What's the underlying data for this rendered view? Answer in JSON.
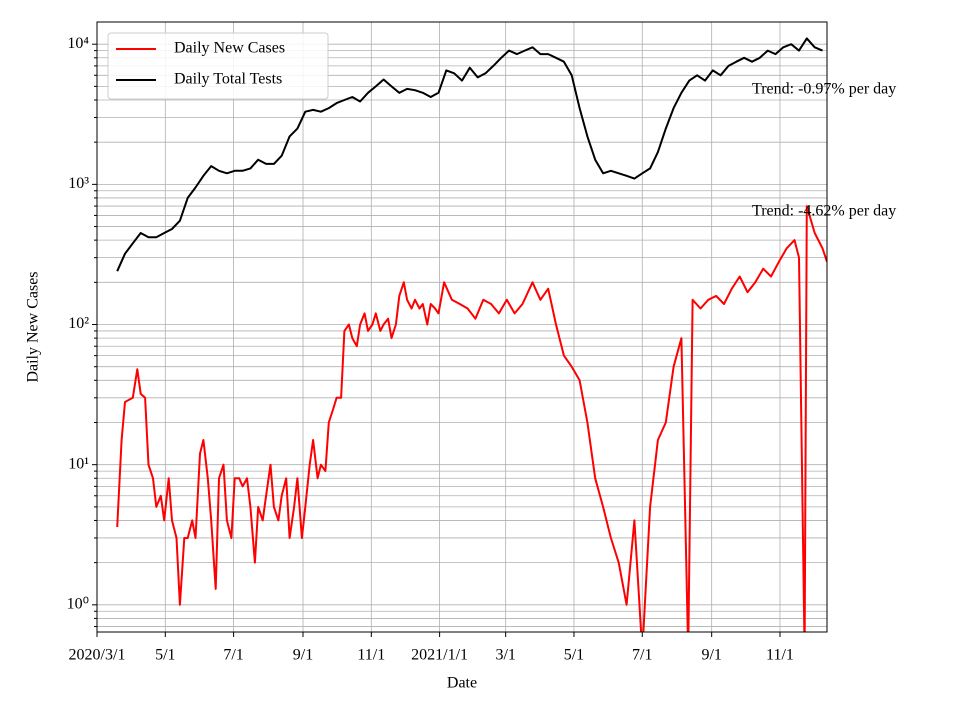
{
  "chart_data": {
    "type": "line",
    "xlabel": "Date",
    "ylabel": "Daily New Cases",
    "log_y": true,
    "grid": true,
    "legend": "upper left",
    "annotations": [
      "Trend: -0.97% per day",
      "Trend: -4.62% per day"
    ],
    "xlim": [
      "2020/3/1",
      "2021/12/13"
    ],
    "xticks": [
      "2020/3/1",
      {
        "value": "2020/5/1",
        "label": "5/1"
      },
      {
        "value": "2020/7/1",
        "label": "7/1"
      },
      {
        "value": "2020/9/1",
        "label": "9/1"
      },
      {
        "value": "2020/11/1",
        "label": "11/1"
      },
      {
        "value": "2021/1/1",
        "label": "2021/1/1"
      },
      {
        "value": "2021/3/1",
        "label": "3/1"
      },
      {
        "value": "2021/5/1",
        "label": "5/1"
      },
      {
        "value": "2021/7/1",
        "label": "7/1"
      },
      {
        "value": "2021/9/1",
        "label": "9/1"
      },
      {
        "value": "2021/11/1",
        "label": "11/1"
      }
    ],
    "ylim": [
      0.64,
      14400
    ],
    "yticks": [
      {
        "value": 1,
        "label": "10⁰"
      },
      {
        "value": 10,
        "label": "10¹"
      },
      {
        "value": 100,
        "label": "10²"
      },
      {
        "value": 1000,
        "label": "10³"
      },
      {
        "value": 10000,
        "label": "10⁴"
      }
    ],
    "series": [
      {
        "name": "Daily New Cases",
        "color": "#ff0000",
        "x": [
          "2020/3/19",
          "2020/3/23",
          "2020/3/26",
          "2020/4/2",
          "2020/4/6",
          "2020/4/9",
          "2020/4/13",
          "2020/4/16",
          "2020/4/20",
          "2020/4/23",
          "2020/4/27",
          "2020/4/30",
          "2020/5/4",
          "2020/5/7",
          "2020/5/11",
          "2020/5/14",
          "2020/5/18",
          "2020/5/21",
          "2020/5/25",
          "2020/5/28",
          "2020/6/1",
          "2020/6/4",
          "2020/6/8",
          "2020/6/11",
          "2020/6/15",
          "2020/6/18",
          "2020/6/22",
          "2020/6/25",
          "2020/6/29",
          "2020/7/2",
          "2020/7/6",
          "2020/7/9",
          "2020/7/13",
          "2020/7/16",
          "2020/7/20",
          "2020/7/23",
          "2020/7/27",
          "2020/7/30",
          "2020/8/3",
          "2020/8/6",
          "2020/8/10",
          "2020/8/13",
          "2020/8/17",
          "2020/8/20",
          "2020/8/24",
          "2020/8/27",
          "2020/8/31",
          "2020/9/3",
          "2020/9/7",
          "2020/9/10",
          "2020/9/14",
          "2020/9/17",
          "2020/9/21",
          "2020/9/24",
          "2020/9/28",
          "2020/10/1",
          "2020/10/5",
          "2020/10/8",
          "2020/10/12",
          "2020/10/15",
          "2020/10/19",
          "2020/10/22",
          "2020/10/26",
          "2020/10/29",
          "2020/11/2",
          "2020/11/5",
          "2020/11/9",
          "2020/11/12",
          "2020/11/16",
          "2020/11/19",
          "2020/11/23",
          "2020/11/26",
          "2020/11/30",
          "2020/12/3",
          "2020/12/7",
          "2020/12/10",
          "2020/12/14",
          "2020/12/17",
          "2020/12/21",
          "2020/12/24",
          "2020/12/28",
          "2020/12/31",
          "2021/1/5",
          "2021/1/12",
          "2021/1/19",
          "2021/1/26",
          "2021/2/2",
          "2021/2/9",
          "2021/2/16",
          "2021/2/23",
          "2021/3/2",
          "2021/3/9",
          "2021/3/16",
          "2021/3/25",
          "2021/4/1",
          "2021/4/8",
          "2021/4/15",
          "2021/4/22",
          "2021/4/29",
          "2021/5/6",
          "2021/5/13",
          "2021/5/20",
          "2021/5/27",
          "2021/6/3",
          "2021/6/10",
          "2021/6/17",
          "2021/6/24",
          "2021/7/1",
          "2021/7/8",
          "2021/7/15",
          "2021/7/22",
          "2021/7/29",
          "2021/8/5",
          "2021/8/11",
          "2021/8/15",
          "2021/8/22",
          "2021/8/29",
          "2021/9/5",
          "2021/9/12",
          "2021/9/19",
          "2021/9/26",
          "2021/10/3",
          "2021/10/10",
          "2021/10/17",
          "2021/10/24",
          "2021/10/31",
          "2021/11/7",
          "2021/11/14",
          "2021/11/18",
          "2021/11/23",
          "2021/11/25",
          "2021/12/2",
          "2021/12/9",
          "2021/12/13"
        ],
        "values": [
          3.6,
          15,
          28,
          30,
          48,
          32,
          30,
          10,
          8,
          5,
          6,
          4,
          8,
          4,
          3,
          1,
          3,
          3,
          4,
          3,
          12,
          15,
          8,
          4,
          1.3,
          8,
          10,
          4,
          3,
          8,
          8,
          7,
          8,
          5,
          2,
          5,
          4,
          6,
          10,
          5,
          4,
          6,
          8,
          3,
          5,
          8,
          3,
          5,
          10,
          15,
          8,
          10,
          9,
          20,
          25,
          30,
          30,
          90,
          100,
          80,
          70,
          100,
          120,
          90,
          100,
          120,
          90,
          100,
          110,
          80,
          100,
          160,
          200,
          150,
          130,
          150,
          130,
          140,
          100,
          140,
          130,
          120,
          200,
          150,
          140,
          130,
          110,
          150,
          140,
          120,
          150,
          120,
          140,
          200,
          150,
          180,
          100,
          60,
          50,
          40,
          20,
          8,
          5,
          3,
          2,
          1,
          4,
          0,
          5,
          15,
          20,
          50,
          80,
          0,
          150,
          130,
          150,
          160,
          140,
          180,
          220,
          170,
          200,
          250,
          220,
          280,
          350,
          400,
          300,
          0,
          700,
          450,
          350,
          280
        ]
      },
      {
        "name": "Daily Total Tests",
        "color": "#000000",
        "x": [
          "2020/3/19",
          "2020/3/26",
          "2020/4/2",
          "2020/4/9",
          "2020/4/16",
          "2020/4/23",
          "2020/4/30",
          "2020/5/7",
          "2020/5/14",
          "2020/5/21",
          "2020/5/28",
          "2020/6/4",
          "2020/6/11",
          "2020/6/18",
          "2020/6/25",
          "2020/7/2",
          "2020/7/9",
          "2020/7/16",
          "2020/7/23",
          "2020/7/30",
          "2020/8/6",
          "2020/8/13",
          "2020/8/20",
          "2020/8/27",
          "2020/9/3",
          "2020/9/10",
          "2020/9/17",
          "2020/9/24",
          "2020/10/1",
          "2020/10/8",
          "2020/10/15",
          "2020/10/22",
          "2020/10/29",
          "2020/11/5",
          "2020/11/12",
          "2020/11/19",
          "2020/11/26",
          "2020/12/3",
          "2020/12/10",
          "2020/12/17",
          "2020/12/24",
          "2020/12/31",
          "2021/1/7",
          "2021/1/14",
          "2021/1/21",
          "2021/1/28",
          "2021/2/4",
          "2021/2/11",
          "2021/2/18",
          "2021/2/25",
          "2021/3/4",
          "2021/3/11",
          "2021/3/18",
          "2021/3/25",
          "2021/4/1",
          "2021/4/8",
          "2021/4/15",
          "2021/4/22",
          "2021/4/29",
          "2021/5/6",
          "2021/5/13",
          "2021/5/20",
          "2021/5/27",
          "2021/6/3",
          "2021/6/10",
          "2021/6/17",
          "2021/6/24",
          "2021/7/1",
          "2021/7/8",
          "2021/7/15",
          "2021/7/22",
          "2021/7/29",
          "2021/8/5",
          "2021/8/12",
          "2021/8/19",
          "2021/8/26",
          "2021/9/2",
          "2021/9/9",
          "2021/9/16",
          "2021/9/23",
          "2021/9/30",
          "2021/10/7",
          "2021/10/14",
          "2021/10/21",
          "2021/10/28",
          "2021/11/4",
          "2021/11/11",
          "2021/11/18",
          "2021/11/25",
          "2021/12/2",
          "2021/12/9"
        ],
        "values": [
          240,
          320,
          380,
          450,
          420,
          420,
          450,
          480,
          550,
          800,
          950,
          1150,
          1350,
          1250,
          1200,
          1250,
          1250,
          1300,
          1500,
          1400,
          1400,
          1600,
          2200,
          2500,
          3300,
          3400,
          3300,
          3500,
          3800,
          4000,
          4200,
          3900,
          4500,
          5000,
          5600,
          5000,
          4500,
          4800,
          4700,
          4500,
          4200,
          4500,
          6500,
          6200,
          5500,
          6800,
          5800,
          6200,
          7000,
          8000,
          9000,
          8500,
          9000,
          9500,
          8500,
          8500,
          8000,
          7500,
          6000,
          3500,
          2200,
          1500,
          1200,
          1250,
          1200,
          1150,
          1100,
          1200,
          1300,
          1700,
          2500,
          3500,
          4500,
          5500,
          6000,
          5500,
          6500,
          6000,
          7000,
          7500,
          8000,
          7500,
          8000,
          9000,
          8500,
          9500,
          10000,
          9000,
          11000,
          9500,
          9000
        ]
      }
    ]
  }
}
